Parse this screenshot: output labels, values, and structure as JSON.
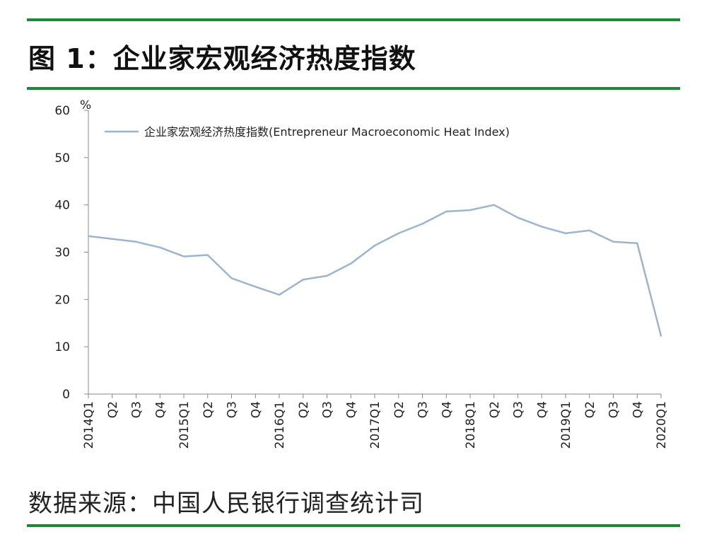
{
  "figure": {
    "title": "图 1：企业家宏观经济热度指数",
    "source": "数据来源：中国人民银行调查统计司"
  },
  "colors": {
    "rule": "#1a8a3a",
    "series": "#9db4cf",
    "axis": "#888888"
  },
  "chart_data": {
    "type": "line",
    "title": "",
    "xlabel": "",
    "ylabel": "",
    "unit": "%",
    "ylim": [
      0,
      60
    ],
    "yticks": [
      "0",
      "10",
      "20",
      "30",
      "40",
      "50",
      "60"
    ],
    "categories": [
      "2014Q1",
      "Q2",
      "Q3",
      "Q4",
      "2015Q1",
      "Q2",
      "Q3",
      "Q4",
      "2016Q1",
      "Q2",
      "Q3",
      "Q4",
      "2017Q1",
      "Q2",
      "Q3",
      "Q4",
      "2018Q1",
      "Q2",
      "Q3",
      "Q4",
      "2019Q1",
      "Q2",
      "Q3",
      "Q4",
      "2020Q1"
    ],
    "series": [
      {
        "name": "企业家宏观经济热度指数(Entrepreneur Macroeconomic Heat Index)",
        "values": [
          33.4,
          32.8,
          32.2,
          31.0,
          29.1,
          29.4,
          24.5,
          22.7,
          21.0,
          24.2,
          25.0,
          27.6,
          31.4,
          34.0,
          36.0,
          38.6,
          38.9,
          40.0,
          37.3,
          35.4,
          34.0,
          34.6,
          32.2,
          31.9,
          12.3
        ]
      }
    ],
    "grid": false,
    "legend_position": "top-left"
  }
}
